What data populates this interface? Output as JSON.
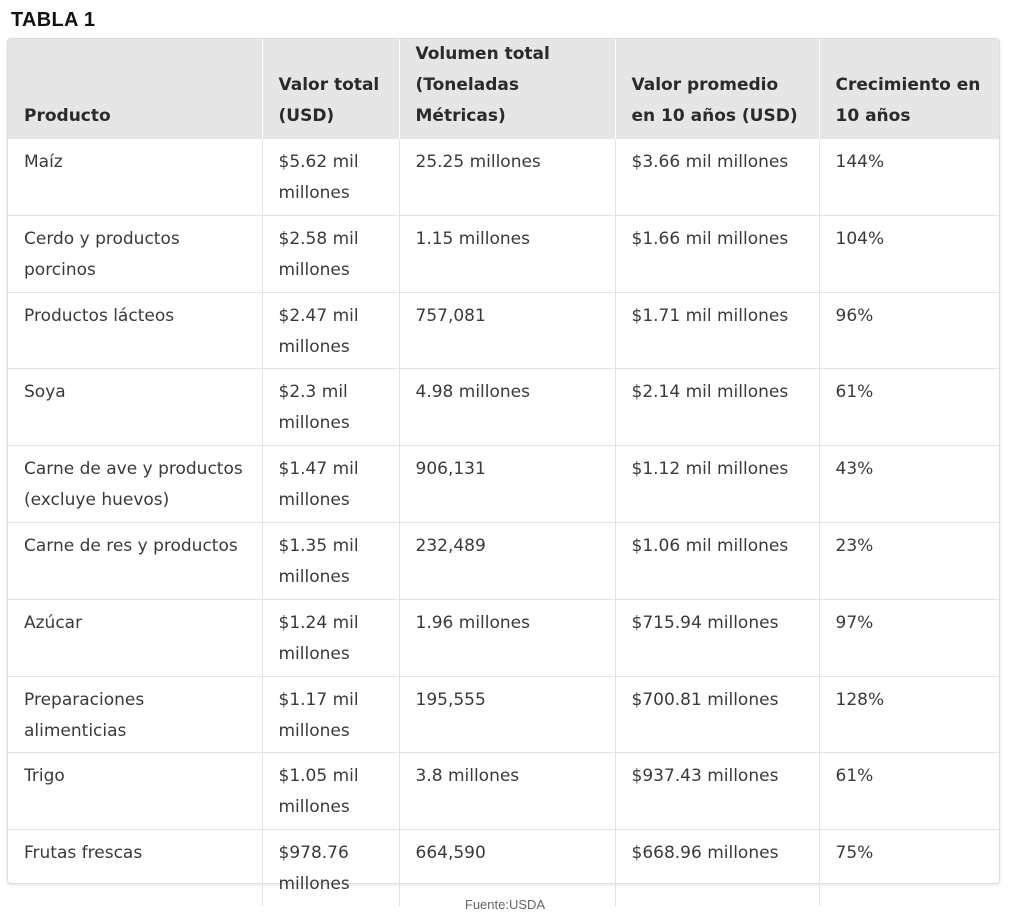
{
  "title": "TABLA 1",
  "table": {
    "headers": [
      "Producto",
      "Valor total (USD)",
      "Volumen total (Toneladas Métricas)",
      "Valor promedio en 10 años (USD)",
      "Crecimiento en 10 años"
    ],
    "rows": [
      [
        "Maíz",
        "$5.62 mil millones",
        "25.25 millones",
        "$3.66 mil millones",
        "144%"
      ],
      [
        "Cerdo y productos porcinos",
        "$2.58 mil millones",
        "1.15 millones",
        "$1.66 mil millones",
        "104%"
      ],
      [
        "Productos lácteos",
        "$2.47 mil millones",
        "757,081",
        "$1.71 mil millones",
        "96%"
      ],
      [
        "Soya",
        "$2.3 mil millones",
        "4.98 millones",
        "$2.14 mil millones",
        "61%"
      ],
      [
        "Carne de ave y productos (excluye huevos)",
        "$1.47 mil millones",
        "906,131",
        "$1.12 mil millones",
        "43%"
      ],
      [
        "Carne de res y productos",
        "$1.35 mil millones",
        "232,489",
        "$1.06 mil millones",
        "23%"
      ],
      [
        "Azúcar",
        "$1.24 mil millones",
        "1.96 millones",
        "$715.94 millones",
        "97%"
      ],
      [
        "Preparaciones alimenticias",
        "$1.17 mil millones",
        "195,555",
        "$700.81 millones",
        "128%"
      ],
      [
        "Trigo",
        "$1.05 mil millones",
        "3.8 millones",
        "$937.43 millones",
        "61%"
      ],
      [
        "Frutas frescas",
        "$978.76 millones",
        "664,590",
        "$668.96 millones",
        "75%"
      ]
    ]
  },
  "source": "Fuente:USDA",
  "colors": {
    "header_background": "#e6e6e6",
    "border": "#e3e3e3",
    "text": "#3a3a3a"
  }
}
